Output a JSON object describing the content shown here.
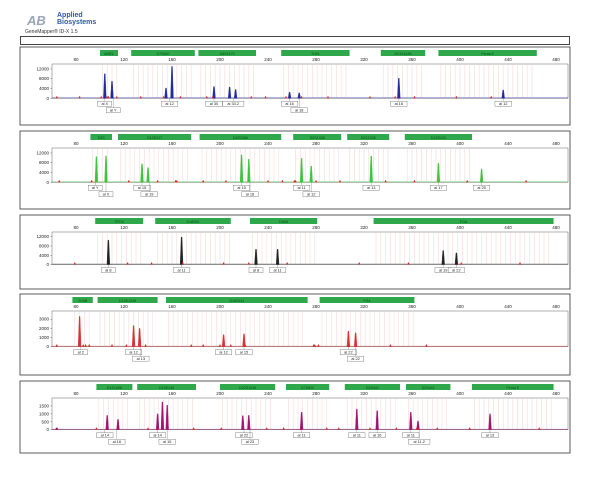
{
  "app": {
    "brand_title": "Applied",
    "brand_subtitle": "Biosystems",
    "version": "GeneMapper® ID-X  1.5"
  },
  "colors": {
    "marker_bin": "#2ea84a",
    "blue": "#1f2b9e",
    "green": "#3cc43c",
    "black": "#222222",
    "red": "#d8302e",
    "purple": "#a0126e",
    "bin_line": "#f0c8c8",
    "peak_marker": "#e02020",
    "brand": "#2a5aa8"
  },
  "x_axis_ticks": [
    "80",
    "120",
    "160",
    "200",
    "240",
    "280",
    "320",
    "360",
    "400",
    "440",
    "480"
  ],
  "panels": [
    {
      "name": "blue",
      "yticks": [
        "12000",
        "8000",
        "4000",
        "0"
      ],
      "ymax": 14000,
      "markers": [
        {
          "label": "AMEL",
          "start": 100,
          "end": 115
        },
        {
          "label": "D7S820",
          "start": 126,
          "end": 179
        },
        {
          "label": "D8S1179",
          "start": 182,
          "end": 230
        },
        {
          "label": "TH01",
          "start": 251,
          "end": 308
        },
        {
          "label": "D21S1435",
          "start": 334,
          "end": 371
        },
        {
          "label": "Penta E",
          "start": 382,
          "end": 464
        }
      ],
      "peaks": [
        {
          "x": 104,
          "h": 10000
        },
        {
          "x": 110,
          "h": 7000
        },
        {
          "x": 155,
          "h": 4200
        },
        {
          "x": 160,
          "h": 13000
        },
        {
          "x": 195,
          "h": 4800
        },
        {
          "x": 208,
          "h": 4600
        },
        {
          "x": 213,
          "h": 3600
        },
        {
          "x": 258,
          "h": 2500
        },
        {
          "x": 266,
          "h": 2200
        },
        {
          "x": 349,
          "h": 8200
        },
        {
          "x": 436,
          "h": 3400
        }
      ],
      "red_marks": [
        64,
        83,
        101,
        106,
        107,
        114,
        134,
        153,
        167,
        189,
        194,
        226,
        238,
        255,
        268,
        290,
        325,
        346,
        362,
        397,
        426
      ],
      "allele_rows": [
        [
          {
            "label": "al X",
            "x": 104
          },
          {
            "label": "al 12",
            "x": 158
          },
          {
            "label": "al 30",
            "x": 195
          },
          {
            "label": "al 33.2",
            "x": 211
          },
          {
            "label": "al 16",
            "x": 258
          },
          {
            "label": "al 16",
            "x": 349
          },
          {
            "label": "al 12",
            "x": 436
          }
        ],
        [
          {
            "label": "al Y",
            "x": 111
          },
          {
            "label": "al 18",
            "x": 266
          }
        ]
      ]
    },
    {
      "name": "green",
      "yticks": [
        "12000",
        "8000",
        "4000",
        "0"
      ],
      "ymax": 14000,
      "markers": [
        {
          "label": "D3S",
          "start": 92,
          "end": 110
        },
        {
          "label": "D13S317",
          "start": 115,
          "end": 176
        },
        {
          "label": "D4S2366",
          "start": 183,
          "end": 251
        },
        {
          "label": "D2S1338",
          "start": 261,
          "end": 301
        },
        {
          "label": "D2S1338",
          "start": 306,
          "end": 341
        },
        {
          "label": "D19S433",
          "start": 354,
          "end": 410
        }
      ],
      "peaks": [
        {
          "x": 97,
          "h": 10500
        },
        {
          "x": 105,
          "h": 10800
        },
        {
          "x": 135,
          "h": 7600
        },
        {
          "x": 140,
          "h": 6000
        },
        {
          "x": 218,
          "h": 11200
        },
        {
          "x": 224,
          "h": 9400
        },
        {
          "x": 268,
          "h": 9800
        },
        {
          "x": 276,
          "h": 6600
        },
        {
          "x": 326,
          "h": 10700
        },
        {
          "x": 382,
          "h": 7800
        },
        {
          "x": 418,
          "h": 5400
        }
      ],
      "red_marks": [
        66,
        93,
        124,
        148,
        163,
        164,
        186,
        205,
        240,
        252,
        262,
        263,
        280,
        300,
        338,
        362,
        406,
        455
      ],
      "allele_rows": [
        [
          {
            "label": "al Y",
            "x": 96
          },
          {
            "label": "al 15",
            "x": 135
          },
          {
            "label": "al 15",
            "x": 218
          },
          {
            "label": "al 11",
            "x": 268
          },
          {
            "label": "al 13",
            "x": 326
          },
          {
            "label": "al 17",
            "x": 382
          },
          {
            "label": "al 25",
            "x": 418
          }
        ],
        [
          {
            "label": "al X",
            "x": 105
          },
          {
            "label": "al 19",
            "x": 141
          },
          {
            "label": "al 16",
            "x": 225
          },
          {
            "label": "al 12",
            "x": 276
          }
        ]
      ]
    },
    {
      "name": "black",
      "yticks": [
        "12000",
        "8000",
        "4000",
        "0"
      ],
      "ymax": 14000,
      "markers": [
        {
          "label": "TPOX",
          "start": 96,
          "end": 136
        },
        {
          "label": "D18S51",
          "start": 146,
          "end": 209
        },
        {
          "label": "D5S8",
          "start": 225,
          "end": 281
        },
        {
          "label": "FGA",
          "start": 328,
          "end": 478
        }
      ],
      "peaks": [
        {
          "x": 107,
          "h": 10500
        },
        {
          "x": 168,
          "h": 11800
        },
        {
          "x": 230,
          "h": 6600
        },
        {
          "x": 248,
          "h": 6600
        },
        {
          "x": 386,
          "h": 6000
        },
        {
          "x": 397,
          "h": 5000
        }
      ],
      "red_marks": [
        79,
        123,
        143,
        169,
        203,
        224,
        256,
        316,
        357,
        401,
        450
      ],
      "allele_rows": [
        [
          {
            "label": "al 8",
            "x": 107
          },
          {
            "label": "al 11",
            "x": 168
          },
          {
            "label": "al 8",
            "x": 230
          },
          {
            "label": "al 11",
            "x": 248
          },
          {
            "label": "al 19",
            "x": 386
          },
          {
            "label": "al 22",
            "x": 397
          }
        ]
      ]
    },
    {
      "name": "red",
      "yticks": [
        "3000",
        "2000",
        "1000",
        "0"
      ],
      "ymax": 3900,
      "markers": [
        {
          "label": "TH0B",
          "start": 77,
          "end": 94
        },
        {
          "label": "D10S1248",
          "start": 98,
          "end": 148
        },
        {
          "label": "D16S511",
          "start": 155,
          "end": 273
        },
        {
          "label": "FGA",
          "start": 283,
          "end": 362
        }
      ],
      "peaks": [
        {
          "x": 83,
          "h": 3300
        },
        {
          "x": 128,
          "h": 2300
        },
        {
          "x": 133,
          "h": 2000
        },
        {
          "x": 203,
          "h": 1300
        },
        {
          "x": 220,
          "h": 1400
        },
        {
          "x": 307,
          "h": 1700
        },
        {
          "x": 313,
          "h": 1500
        }
      ],
      "red_marks": [
        64,
        86,
        88,
        91,
        110,
        122,
        138,
        176,
        186,
        200,
        209,
        221,
        278,
        279,
        282,
        307,
        342,
        372
      ],
      "allele_rows": [
        [
          {
            "label": "al 2",
            "x": 84
          },
          {
            "label": "al 12",
            "x": 128
          },
          {
            "label": "al 12",
            "x": 203
          },
          {
            "label": "al 15",
            "x": 220
          },
          {
            "label": "al 22",
            "x": 307
          }
        ],
        [
          {
            "label": "al 13",
            "x": 134
          },
          {
            "label": "al 22",
            "x": 313
          }
        ]
      ]
    },
    {
      "name": "purple",
      "yticks": [
        "1500",
        "1000",
        "500",
        "0"
      ],
      "ymax": 2000,
      "markers": [
        {
          "label": "D1S1656",
          "start": 97,
          "end": 127
        },
        {
          "label": "D10S248",
          "start": 131,
          "end": 180
        },
        {
          "label": "D22S1045",
          "start": 200,
          "end": 246
        },
        {
          "label": "D7S820",
          "start": 255,
          "end": 291
        },
        {
          "label": "D2S441",
          "start": 304,
          "end": 350
        },
        {
          "label": "D2S441",
          "start": 355,
          "end": 392
        },
        {
          "label": "Penta E",
          "start": 410,
          "end": 478
        }
      ],
      "peaks": [
        {
          "x": 64,
          "h": 120
        },
        {
          "x": 106,
          "h": 900
        },
        {
          "x": 115,
          "h": 650
        },
        {
          "x": 148,
          "h": 1000
        },
        {
          "x": 152,
          "h": 1750
        },
        {
          "x": 156,
          "h": 1550
        },
        {
          "x": 219,
          "h": 880
        },
        {
          "x": 224,
          "h": 900
        },
        {
          "x": 268,
          "h": 1100
        },
        {
          "x": 314,
          "h": 1300
        },
        {
          "x": 331,
          "h": 1200
        },
        {
          "x": 359,
          "h": 1100
        },
        {
          "x": 365,
          "h": 550
        },
        {
          "x": 425,
          "h": 1000
        }
      ],
      "red_marks": [
        97,
        140,
        178,
        201,
        239,
        253,
        289,
        299,
        325,
        347,
        364,
        381,
        408,
        466
      ],
      "allele_rows": [
        [
          {
            "label": "al 14",
            "x": 104
          },
          {
            "label": "al 14",
            "x": 148
          },
          {
            "label": "al 22",
            "x": 220
          },
          {
            "label": "al 11",
            "x": 268
          },
          {
            "label": "al 11",
            "x": 314
          },
          {
            "label": "al 16",
            "x": 331
          },
          {
            "label": "al 11",
            "x": 359
          },
          {
            "label": "al 13",
            "x": 425
          }
        ],
        [
          {
            "label": "al 16",
            "x": 114
          },
          {
            "label": "al 15",
            "x": 156
          },
          {
            "label": "al 23",
            "x": 225
          },
          {
            "label": "al 11.2",
            "x": 366
          }
        ]
      ]
    }
  ]
}
